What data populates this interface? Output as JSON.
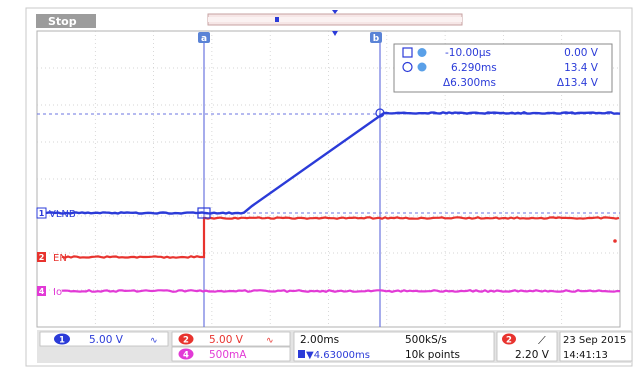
{
  "header": {
    "status": "Stop"
  },
  "cursors": {
    "a_label": "a",
    "b_label": "b"
  },
  "readout": {
    "row1_time": "-10.00µs",
    "row1_value": "0.00 V",
    "row2_time": "6.290ms",
    "row2_value": "13.4 V",
    "delta_time": "Δ6.300ms",
    "delta_value": "Δ13.4 V"
  },
  "traces": {
    "vlnb": {
      "channel": "1",
      "label": "VLNB",
      "color": "#2b3bd8",
      "levels": [
        0.0,
        13.4
      ]
    },
    "en": {
      "channel": "2",
      "label": "EN",
      "color": "#e8332e"
    },
    "io": {
      "channel": "4",
      "label": "Io",
      "color": "#e23ad6"
    }
  },
  "status_bar": {
    "ch1_num": "1",
    "ch1_scale": "5.00 V",
    "ch2_num": "2",
    "ch2_scale": "5.00 V",
    "ch4_num": "4",
    "ch4_scale": "500mA",
    "timebase": "2.00ms",
    "delay": "▼4.63000ms",
    "sample_rate": "500kS/s",
    "record_length": "10k points",
    "trigger_num": "2",
    "trigger_slope": "⟋",
    "trigger_level": "2.20 V",
    "date": "23 Sep  2015",
    "time": "14:41:13"
  }
}
